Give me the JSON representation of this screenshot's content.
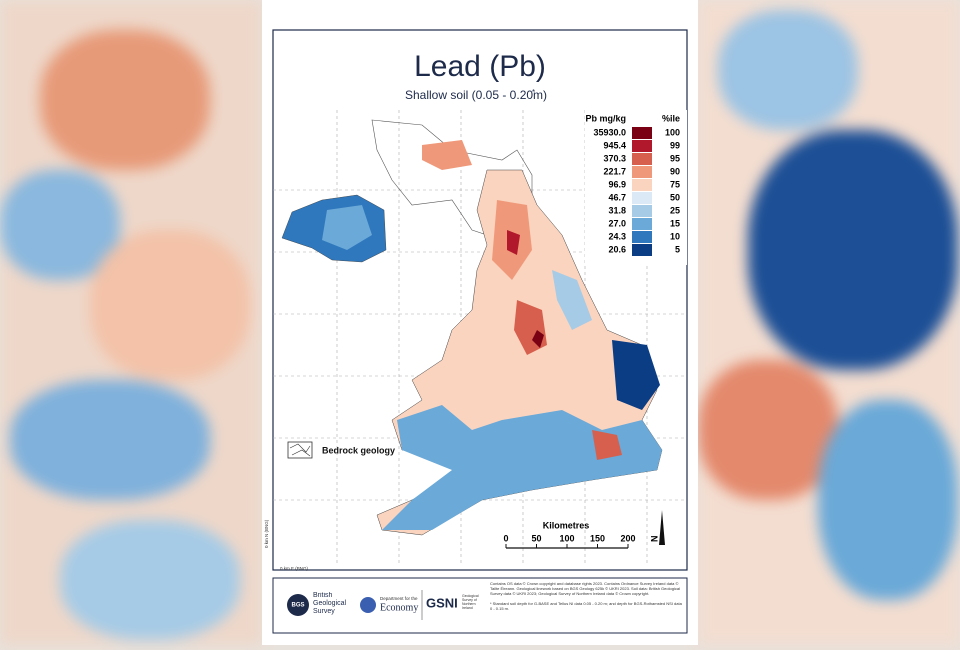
{
  "header": {
    "title": "Lead (Pb)",
    "subtitle": "Shallow soil (0.05 - 0.20m)",
    "footnote_mark": "*"
  },
  "legend": {
    "value_heading": "Pb mg/kg",
    "percentile_heading": "%ile",
    "entries": [
      {
        "value": "35930.0",
        "percentile": "100",
        "color": "#7a0014"
      },
      {
        "value": "945.4",
        "percentile": "99",
        "color": "#b2182b"
      },
      {
        "value": "370.3",
        "percentile": "95",
        "color": "#d6604d"
      },
      {
        "value": "221.7",
        "percentile": "90",
        "color": "#f0997a"
      },
      {
        "value": "96.9",
        "percentile": "75",
        "color": "#fbd4bf"
      },
      {
        "value": "46.7",
        "percentile": "50",
        "color": "#dbe9f6"
      },
      {
        "value": "31.8",
        "percentile": "25",
        "color": "#a6cbe6"
      },
      {
        "value": "27.0",
        "percentile": "15",
        "color": "#6aa9d8"
      },
      {
        "value": "24.3",
        "percentile": "10",
        "color": "#2f78bd"
      },
      {
        "value": "20.6",
        "percentile": "5",
        "color": "#0b3d85"
      }
    ]
  },
  "bedrock_label": "Bedrock geology",
  "axes": {
    "north": "0 km N (BNG)",
    "east": "0 km E (BNG)"
  },
  "scale_bar": {
    "title": "Kilometres",
    "ticks": [
      0,
      50,
      100,
      150,
      200
    ]
  },
  "north_label": "N",
  "footer": {
    "bgs": "British Geological Survey",
    "economy_small": "Department for the",
    "economy": "Economy",
    "gsni": "GSNI",
    "gsni_small": "Geological Survey of Northern Ireland",
    "credits": "Contains OS data © Crown copyright and database rights 2023. Contains Ordnance Survey Ireland data © Tailte Éireann. Geological linework based on BGS Geology 625k © UKRI 2023. Soil data: British Geological Survey data © UKRI 2023; Geological Survey of Northern Ireland data © Crown copyright.",
    "footnote": "* Standard soil depth for G-BASE and Tellus NI data 0.05 - 0.20 m; and depth for BGS-Rothamsted NSI data 0 - 0.15 m."
  }
}
